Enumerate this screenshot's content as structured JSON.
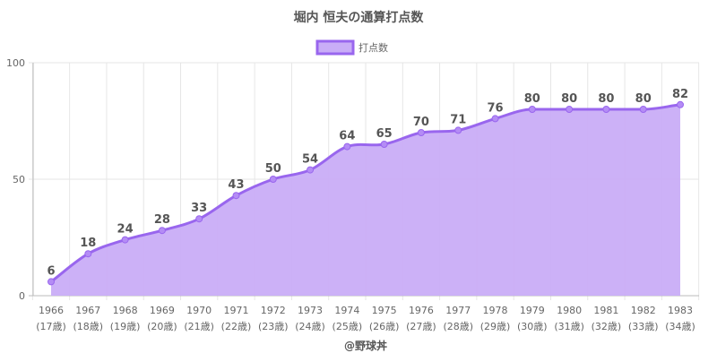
{
  "chart_data": {
    "type": "area",
    "title": "堀内 恒夫の通算打点数",
    "legend": {
      "label": "打点数",
      "placement": "top-center"
    },
    "x": [
      "1966",
      "1967",
      "1968",
      "1969",
      "1970",
      "1971",
      "1972",
      "1973",
      "1974",
      "1975",
      "1976",
      "1977",
      "1978",
      "1979",
      "1980",
      "1981",
      "1982",
      "1983"
    ],
    "x_sublabels": [
      "(17歳)",
      "(18歳)",
      "(19歳)",
      "(20歳)",
      "(21歳)",
      "(22歳)",
      "(23歳)",
      "(24歳)",
      "(25歳)",
      "(26歳)",
      "(27歳)",
      "(28歳)",
      "(29歳)",
      "(30歳)",
      "(31歳)",
      "(32歳)",
      "(33歳)",
      "(34歳)"
    ],
    "series": [
      {
        "name": "打点数",
        "values": [
          6,
          18,
          24,
          28,
          33,
          43,
          50,
          54,
          64,
          65,
          70,
          71,
          76,
          80,
          80,
          80,
          80,
          82
        ]
      }
    ],
    "ylim": [
      0,
      100
    ],
    "yticks": [
      "0",
      "50",
      "100"
    ],
    "grid": true,
    "colors": {
      "line": "#9966ee",
      "fill": "#c9adf7",
      "point": "#b48cf5",
      "label": "#555555"
    },
    "footer": "@野球丼"
  }
}
